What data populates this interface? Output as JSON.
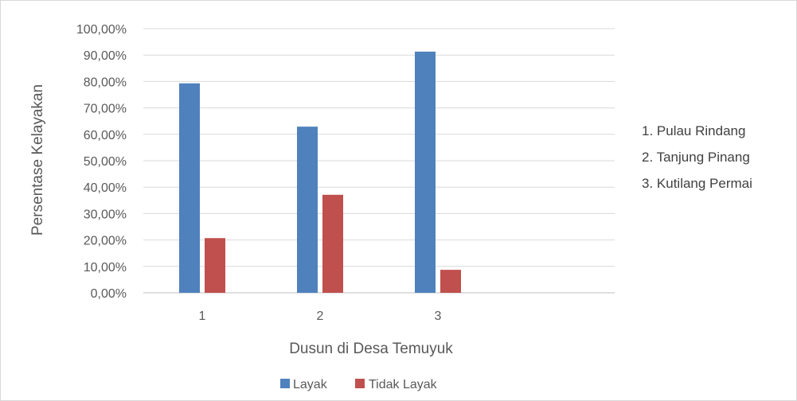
{
  "chart_data": {
    "type": "bar",
    "categories": [
      "1",
      "2",
      "3"
    ],
    "series": [
      {
        "name": "Layak",
        "values": [
          79.3,
          62.9,
          91.3
        ],
        "color": "#4f81bd"
      },
      {
        "name": "Tidak Layak",
        "values": [
          20.7,
          37.1,
          8.7
        ],
        "color": "#c0504d"
      }
    ],
    "ylim": [
      0,
      100
    ],
    "yticks": [
      "0,00%",
      "10,00%",
      "20,00%",
      "30,00%",
      "40,00%",
      "50,00%",
      "60,00%",
      "70,00%",
      "80,00%",
      "90,00%",
      "100,00%"
    ],
    "xlabel": "Dusun di Desa Temuyuk",
    "ylabel": "Persentase Kelayakan",
    "grid": true,
    "legend": "bottom"
  },
  "notes": [
    "1. Pulau Rindang",
    "2. Tanjung Pinang",
    "3. Kutilang Permai"
  ]
}
